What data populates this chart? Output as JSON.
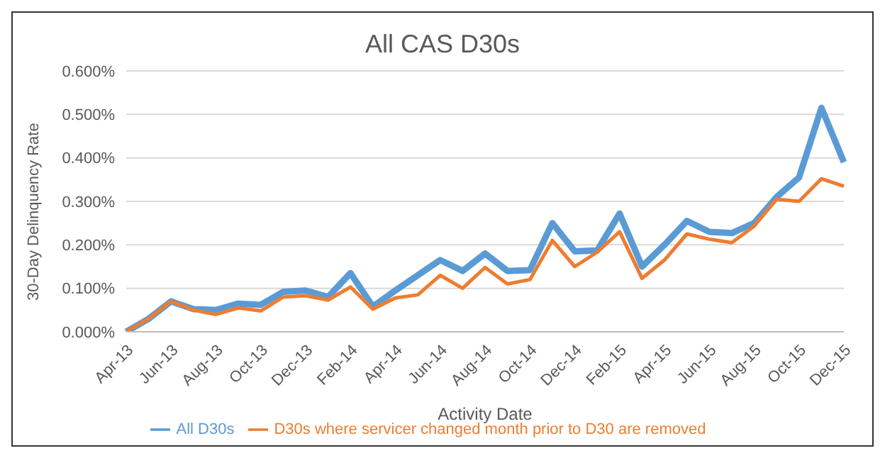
{
  "chart_data": {
    "type": "line",
    "title": "All CAS D30s",
    "xlabel": "Activity Date",
    "ylabel": "30-Day Delinquency Rate",
    "categories": [
      "Apr-13",
      null,
      "Jun-13",
      null,
      "Aug-13",
      null,
      "Oct-13",
      null,
      "Dec-13",
      null,
      "Feb-14",
      null,
      "Apr-14",
      null,
      "Jun-14",
      null,
      "Aug-14",
      null,
      "Oct-14",
      null,
      "Dec-14",
      null,
      "Feb-15",
      null,
      "Apr-15",
      null,
      "Jun-15",
      null,
      "Aug-15",
      null,
      "Oct-15",
      null,
      "Dec-15"
    ],
    "series": [
      {
        "name": "All D30s",
        "color": "#5b9bd5",
        "values": [
          0,
          0.03,
          0.07,
          0.052,
          0.05,
          0.065,
          0.062,
          0.092,
          0.095,
          0.08,
          0.135,
          0.058,
          0.095,
          0.13,
          0.165,
          0.14,
          0.18,
          0.14,
          0.142,
          0.25,
          0.185,
          0.187,
          0.272,
          0.15,
          0.2,
          0.255,
          0.23,
          0.227,
          0.25,
          0.31,
          0.355,
          0.515,
          0.39
        ]
      },
      {
        "name": "D30s where servicer changed month prior to D30 are removed",
        "color": "#ed7d31",
        "values": [
          0,
          0.03,
          0.07,
          0.05,
          0.04,
          0.055,
          0.048,
          0.08,
          0.083,
          0.073,
          0.103,
          0.052,
          0.078,
          0.085,
          0.13,
          0.1,
          0.148,
          0.11,
          0.12,
          0.21,
          0.15,
          0.183,
          0.23,
          0.123,
          0.165,
          0.225,
          0.213,
          0.205,
          0.243,
          0.305,
          0.3,
          0.352,
          0.335
        ]
      }
    ],
    "ylim": [
      0,
      0.6
    ],
    "yticks": [
      {
        "value": 0,
        "label": "0.000%"
      },
      {
        "value": 0.1,
        "label": "0.100%"
      },
      {
        "value": 0.2,
        "label": "0.200%"
      },
      {
        "value": 0.3,
        "label": "0.300%"
      },
      {
        "value": 0.4,
        "label": "0.400%"
      },
      {
        "value": 0.5,
        "label": "0.500%"
      },
      {
        "value": 0.6,
        "label": "0.600%"
      }
    ],
    "grid": "y",
    "legend": "bottom",
    "marker": "none",
    "line_style": "solid"
  }
}
